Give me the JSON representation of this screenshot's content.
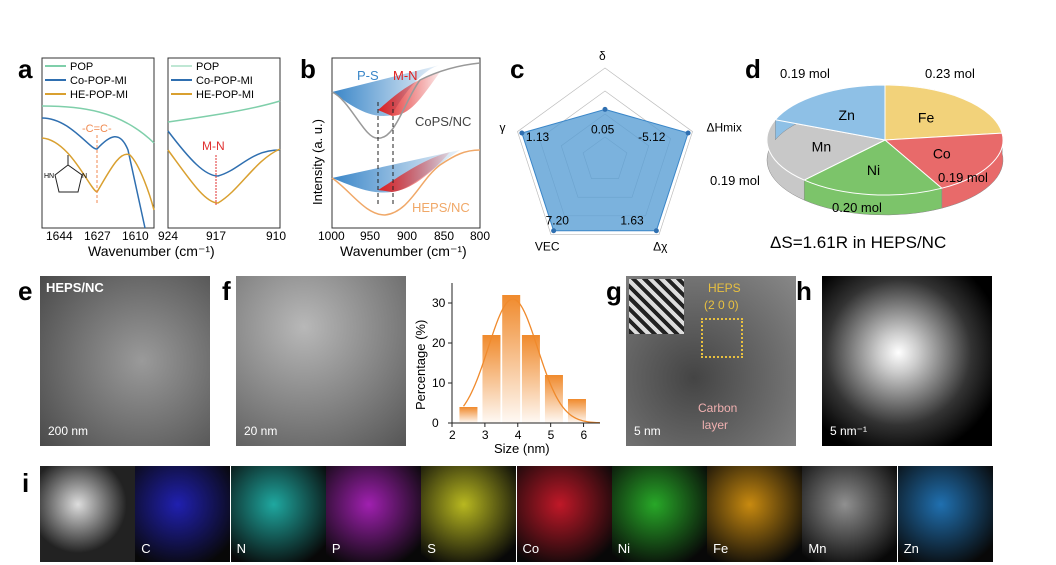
{
  "panel_labels": [
    "a",
    "b",
    "c",
    "d",
    "e",
    "f",
    "g",
    "h",
    "i"
  ],
  "panel_a": {
    "legend": [
      "POP",
      "Co-POP-MI",
      "HE-POP-MI"
    ],
    "left_ticks": [
      "1644",
      "1627",
      "1610"
    ],
    "right_ticks": [
      "924",
      "917",
      "910"
    ],
    "xlabel": "Wavenumber (cm⁻¹)",
    "annot_left": "-C=C-",
    "annot_right": "M-N",
    "molecule_labels": [
      "HN",
      "N"
    ],
    "colors": {
      "POP": "#7fcfaa",
      "Co-POP-MI": "#2f6fb0",
      "HE-POP-MI": "#d9a030"
    }
  },
  "panel_b": {
    "ylabel": "Intensity (a. u.)",
    "xlabel": "Wavenumber (cm⁻¹)",
    "ticks": [
      "1000",
      "950",
      "900",
      "850",
      "800"
    ],
    "ps": "P-S",
    "mn": "M-N",
    "sample1": "CoPS/NC",
    "sample2": "HEPS/NC"
  },
  "chart_data": [
    {
      "type": "radar",
      "axes": [
        "δ",
        "ΔHmix",
        "Δχ",
        "VEC",
        "γ"
      ],
      "values_text": [
        "0.05",
        "-5.12",
        "1.63",
        "7.20",
        "1.13"
      ],
      "relative_fill": [
        0.55,
        0.95,
        0.95,
        0.95,
        0.95
      ]
    },
    {
      "type": "pie",
      "title": "ΔS=1.61R in HEPS/NC",
      "labels": [
        "Fe",
        "Co",
        "Ni",
        "Mn",
        "Zn"
      ],
      "values": [
        0.23,
        0.19,
        0.2,
        0.19,
        0.19
      ],
      "value_labels": [
        "0.23 mol",
        "0.19 mol",
        "0.20 mol",
        "0.19 mol",
        "0.19 mol"
      ],
      "colors": [
        "#f2d27a",
        "#e86a6a",
        "#7cc46a",
        "#c8c8c8",
        "#8ec0e6"
      ]
    },
    {
      "type": "bar",
      "xlabel": "Size (nm)",
      "ylabel": "Percentage (%)",
      "x": [
        2.5,
        3.2,
        3.8,
        4.4,
        5.1,
        5.8
      ],
      "values": [
        4,
        22,
        32,
        22,
        12,
        6
      ],
      "xlim": [
        2,
        6.5
      ],
      "ylim": [
        0,
        35
      ],
      "xticks": [
        "2",
        "3",
        "4",
        "5",
        "6"
      ],
      "yticks": [
        "0",
        "10",
        "20",
        "30"
      ],
      "color": "#f08a2c"
    }
  ],
  "panel_e": {
    "title": "HEPS/NC",
    "scale": "200 nm"
  },
  "panel_f": {
    "scale": "20 nm"
  },
  "panel_g": {
    "phase": "HEPS",
    "plane": "(2 0 0)",
    "layer1": "Carbon",
    "layer2": "layer",
    "scale": "5 nm"
  },
  "panel_h": {
    "scale": "5 nm⁻¹"
  },
  "panel_i": {
    "maps": [
      {
        "el": "",
        "c": "#888"
      },
      {
        "el": "C",
        "c": "#2020b0"
      },
      {
        "el": "N",
        "c": "#1fa8a0"
      },
      {
        "el": "P",
        "c": "#a020b0"
      },
      {
        "el": "S",
        "c": "#b8b820"
      },
      {
        "el": "Co",
        "c": "#c01828"
      },
      {
        "el": "Ni",
        "c": "#28a828"
      },
      {
        "el": "Fe",
        "c": "#c88a10"
      },
      {
        "el": "Mn",
        "c": "#909090"
      },
      {
        "el": "Zn",
        "c": "#2070b0"
      }
    ]
  }
}
